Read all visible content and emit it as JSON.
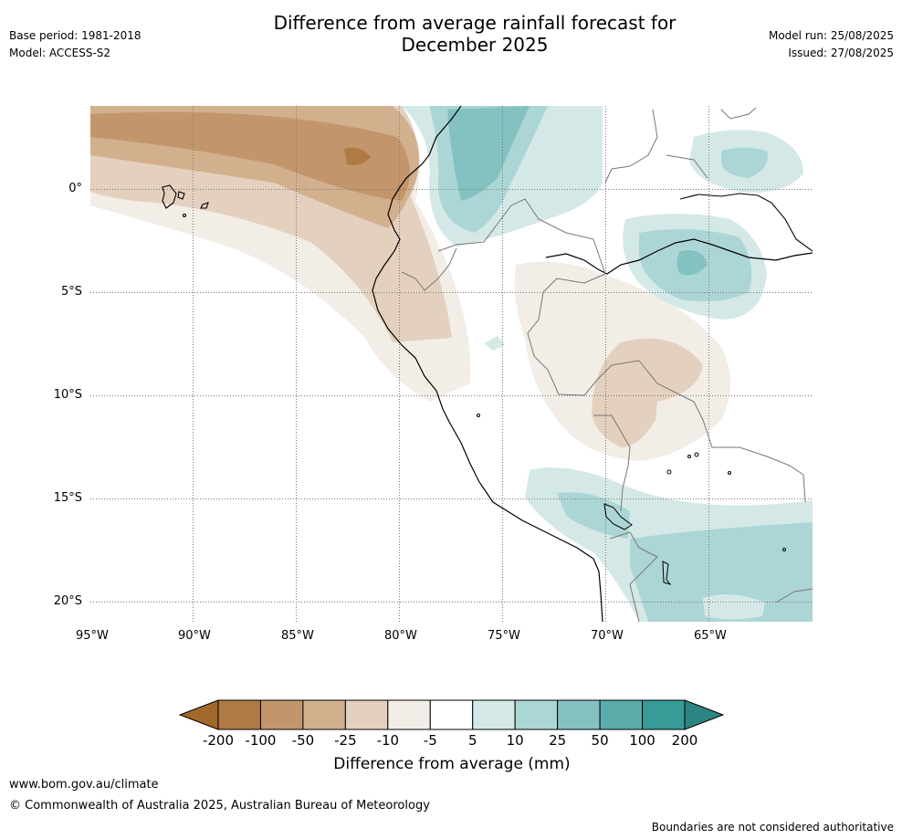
{
  "header": {
    "title_line1": "Difference from average rainfall forecast for",
    "title_line2": "December 2025",
    "base_period": "Base period: 1981-2018",
    "model": "Model: ACCESS-S2",
    "model_run": "Model run: 25/08/2025",
    "issued": "Issued: 27/08/2025"
  },
  "map": {
    "lon_ticks": [
      "95°W",
      "90°W",
      "85°W",
      "80°W",
      "75°W",
      "70°W",
      "65°W"
    ],
    "lat_ticks": [
      "0°",
      "5°S",
      "10°S",
      "15°S",
      "20°S"
    ]
  },
  "colorbar": {
    "title": "Difference from average (mm)",
    "labels": [
      "-200",
      "-100",
      "-50",
      "-25",
      "-10",
      "-5",
      "5",
      "10",
      "25",
      "50",
      "100",
      "200"
    ],
    "colors": [
      "#a0682a",
      "#b07a45",
      "#c2966a",
      "#d2b08e",
      "#e4d0be",
      "#f2ede7",
      "#ffffff",
      "#d4e9e7",
      "#acd6d5",
      "#83c2c0",
      "#5aadab",
      "#379b98",
      "#2c8582"
    ]
  },
  "footer": {
    "website": "www.bom.gov.au/climate",
    "copyright": "© Commonwealth of Australia 2025, Australian Bureau of Meteorology",
    "disclaimer": "Boundaries are not considered authoritative"
  }
}
